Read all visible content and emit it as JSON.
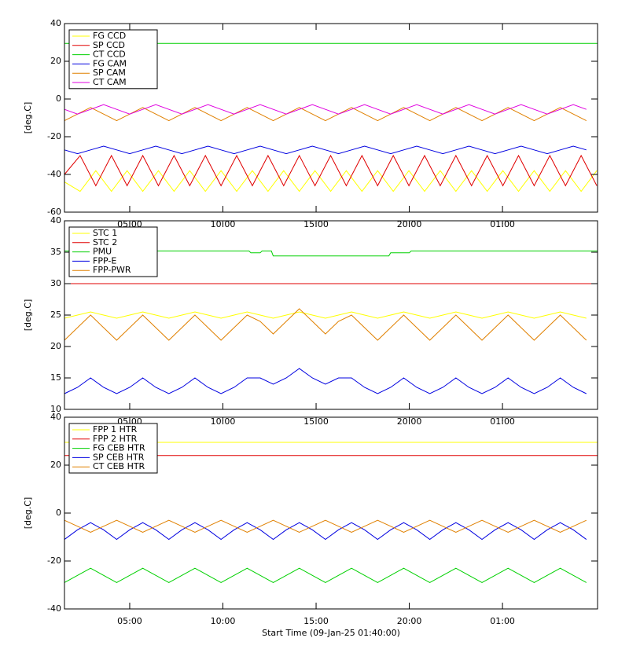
{
  "chart_data": [
    {
      "type": "line",
      "ylabel": "[deg.C]",
      "xlim": [
        1.5,
        30.1
      ],
      "xticks": [
        {
          "value": 5,
          "label": "05:00"
        },
        {
          "value": 10,
          "label": "10:00"
        },
        {
          "value": 15,
          "label": "15:00"
        },
        {
          "value": 20,
          "label": "20:00"
        },
        {
          "value": 25,
          "label": "01:00"
        }
      ],
      "ylim": [
        -60,
        40
      ],
      "yticks": [
        -60,
        -40,
        -20,
        0,
        20,
        40
      ],
      "x": [
        1.5,
        2.2,
        2.9,
        3.6,
        4.3,
        5,
        5.7,
        6.4,
        7.1,
        7.8,
        8.5,
        9.2,
        9.9,
        10.6,
        11.3,
        12,
        12.7,
        13.4,
        14.1,
        14.8,
        15.5,
        16.2,
        16.9,
        17.6,
        18.3,
        19,
        19.7,
        20.4,
        21.1,
        21.8,
        22.5,
        23.2,
        23.9,
        24.6,
        25.3,
        26,
        26.7,
        27.4,
        28.1,
        28.8,
        29.5
      ],
      "series": [
        {
          "name": "FG CCD",
          "color": "#ffff00",
          "x": [
            1.5,
            2.34,
            3.18,
            4.02,
            4.86,
            5.7,
            6.54,
            7.38,
            8.22,
            9.06,
            9.9,
            10.74,
            11.58,
            12.42,
            13.26,
            14.1,
            14.94,
            15.78,
            16.62,
            17.46,
            18.3,
            19.14,
            19.98,
            20.82,
            21.66,
            22.5,
            23.34,
            24.18,
            25.02,
            25.86,
            26.7,
            27.54,
            28.38,
            29.22,
            30.06
          ],
          "values": [
            -44,
            -49,
            -38,
            -49,
            -38,
            -49,
            -38,
            -49,
            -38,
            -49,
            -38,
            -49,
            -38,
            -49,
            -38,
            -49,
            -38,
            -49,
            -38,
            -49,
            -38,
            -49,
            -38,
            -49,
            -38,
            -49,
            -38,
            -49,
            -38,
            -49,
            -38,
            -49,
            -38,
            -49,
            -38
          ]
        },
        {
          "name": "SP CCD",
          "color": "#e00000",
          "x": [
            1.5,
            2.34,
            3.18,
            4.02,
            4.86,
            5.7,
            6.54,
            7.38,
            8.22,
            9.06,
            9.9,
            10.74,
            11.58,
            12.42,
            13.26,
            14.1,
            14.94,
            15.78,
            16.62,
            17.46,
            18.3,
            19.14,
            19.98,
            20.82,
            21.66,
            22.5,
            23.34,
            24.18,
            25.02,
            25.86,
            26.7,
            27.54,
            28.38,
            29.22,
            30.06
          ],
          "values": [
            -40,
            -30,
            -46,
            -30,
            -46,
            -30,
            -46,
            -30,
            -46,
            -30,
            -46,
            -30,
            -46,
            -30,
            -46,
            -30,
            -46,
            -30,
            -46,
            -30,
            -46,
            -30,
            -46,
            -30,
            -46,
            -30,
            -46,
            -30,
            -46,
            -30,
            -46,
            -30,
            -46,
            -30,
            -46
          ]
        },
        {
          "name": "CT CCD",
          "color": "#00d000",
          "x": [
            1.5,
            30.1
          ],
          "values": [
            29.5,
            29.5
          ]
        },
        {
          "name": "FG CAM",
          "color": "#0000e0",
          "values": [
            -27,
            -29,
            -27,
            -25,
            -27,
            -29,
            -27,
            -25,
            -27,
            -29,
            -27,
            -25,
            -27,
            -29,
            -27,
            -25,
            -27,
            -29,
            -27,
            -25,
            -27,
            -29,
            -27,
            -25,
            -27,
            -29,
            -27,
            -25,
            -27,
            -29,
            -27,
            -25,
            -27,
            -29,
            -27,
            -25,
            -27,
            -29,
            -27,
            -25,
            -27
          ]
        },
        {
          "name": "SP CAM",
          "color": "#e08000",
          "values": [
            -11.5,
            -8,
            -4.5,
            -8,
            -11.5,
            -8,
            -4.5,
            -8,
            -11.5,
            -8,
            -4.5,
            -8,
            -11.5,
            -8,
            -4.5,
            -8,
            -11.5,
            -8,
            -4.5,
            -8,
            -11.5,
            -8,
            -4.5,
            -8,
            -11.5,
            -8,
            -4.5,
            -8,
            -11.5,
            -8,
            -4.5,
            -8,
            -11.5,
            -8,
            -4.5,
            -8,
            -11.5,
            -8,
            -4.5,
            -8,
            -11.5
          ]
        },
        {
          "name": "CT CAM",
          "color": "#e000e0",
          "values": [
            -5.5,
            -8,
            -5.5,
            -3,
            -5.5,
            -8,
            -5.5,
            -3,
            -5.5,
            -8,
            -5.5,
            -3,
            -5.5,
            -8,
            -5.5,
            -3,
            -5.5,
            -8,
            -5.5,
            -3,
            -5.5,
            -8,
            -5.5,
            -3,
            -5.5,
            -8,
            -5.5,
            -3,
            -5.5,
            -8,
            -5.5,
            -3,
            -5.5,
            -8,
            -5.5,
            -3,
            -5.5,
            -8,
            -5.5,
            -3,
            -5.5
          ]
        }
      ]
    },
    {
      "type": "line",
      "ylabel": "[deg.C]",
      "xlim": [
        1.5,
        30.1
      ],
      "xticks": [
        {
          "value": 5,
          "label": "05:00"
        },
        {
          "value": 10,
          "label": "10:00"
        },
        {
          "value": 15,
          "label": "15:00"
        },
        {
          "value": 20,
          "label": "20:00"
        },
        {
          "value": 25,
          "label": "01:00"
        }
      ],
      "ylim": [
        10,
        40
      ],
      "yticks": [
        10,
        15,
        20,
        25,
        30,
        35,
        40
      ],
      "x": [
        1.5,
        2.2,
        2.9,
        3.6,
        4.3,
        5,
        5.7,
        6.4,
        7.1,
        7.8,
        8.5,
        9.2,
        9.9,
        10.6,
        11.3,
        12,
        12.7,
        13.4,
        14.1,
        14.8,
        15.5,
        16.2,
        16.9,
        17.6,
        18.3,
        19,
        19.7,
        20.4,
        21.1,
        21.8,
        22.5,
        23.2,
        23.9,
        24.6,
        25.3,
        26,
        26.7,
        27.4,
        28.1,
        28.8,
        29.5
      ],
      "series": [
        {
          "name": "STC 1",
          "color": "#ffff00",
          "values": [
            24.5,
            25,
            25.5,
            25,
            24.5,
            25,
            25.5,
            25,
            24.5,
            25,
            25.5,
            25,
            24.5,
            25,
            25.5,
            25,
            24.5,
            25,
            25.5,
            25,
            24.5,
            25,
            25.5,
            25,
            24.5,
            25,
            25.5,
            25,
            24.5,
            25,
            25.5,
            25,
            24.5,
            25,
            25.5,
            25,
            24.5,
            25,
            25.5,
            25,
            24.5
          ]
        },
        {
          "name": "STC 2",
          "color": "#e00000",
          "x": [
            1.5,
            30.1
          ],
          "values": [
            30,
            30
          ]
        },
        {
          "name": "PMU",
          "color": "#00d000",
          "x": [
            1.5,
            11.4,
            11.5,
            12.0,
            12.1,
            12.6,
            12.7,
            18.9,
            19.0,
            20.0,
            20.1,
            30.1
          ],
          "values": [
            35.2,
            35.2,
            34.9,
            34.9,
            35.2,
            35.2,
            34.4,
            34.4,
            34.9,
            34.9,
            35.2,
            35.2
          ]
        },
        {
          "name": "FPP-E",
          "color": "#0000e0",
          "values": [
            12.5,
            13.5,
            15,
            13.5,
            12.5,
            13.5,
            15,
            13.5,
            12.5,
            13.5,
            15,
            13.5,
            12.5,
            13.5,
            15,
            15,
            14,
            15,
            16.5,
            15,
            14,
            15,
            15,
            13.5,
            12.5,
            13.5,
            15,
            13.5,
            12.5,
            13.5,
            15,
            13.5,
            12.5,
            13.5,
            15,
            13.5,
            12.5,
            13.5,
            15,
            13.5,
            12.5
          ]
        },
        {
          "name": "FPP-PWR",
          "color": "#e08000",
          "values": [
            21,
            23,
            25,
            23,
            21,
            23,
            25,
            23,
            21,
            23,
            25,
            23,
            21,
            23,
            25,
            24,
            22,
            24,
            26,
            24,
            22,
            24,
            25,
            23,
            21,
            23,
            25,
            23,
            21,
            23,
            25,
            23,
            21,
            23,
            25,
            23,
            21,
            23,
            25,
            23,
            21
          ]
        }
      ]
    },
    {
      "type": "line",
      "ylabel": "[deg.C]",
      "xlabel": "Start Time (09-Jan-25 01:40:00)",
      "xlim": [
        1.5,
        30.1
      ],
      "xticks": [
        {
          "value": 5,
          "label": "05:00"
        },
        {
          "value": 10,
          "label": "10:00"
        },
        {
          "value": 15,
          "label": "15:00"
        },
        {
          "value": 20,
          "label": "20:00"
        },
        {
          "value": 25,
          "label": "01:00"
        }
      ],
      "ylim": [
        -40,
        40
      ],
      "yticks": [
        -40,
        -20,
        0,
        20,
        40
      ],
      "x": [
        1.5,
        2.2,
        2.9,
        3.6,
        4.3,
        5,
        5.7,
        6.4,
        7.1,
        7.8,
        8.5,
        9.2,
        9.9,
        10.6,
        11.3,
        12,
        12.7,
        13.4,
        14.1,
        14.8,
        15.5,
        16.2,
        16.9,
        17.6,
        18.3,
        19,
        19.7,
        20.4,
        21.1,
        21.8,
        22.5,
        23.2,
        23.9,
        24.6,
        25.3,
        26,
        26.7,
        27.4,
        28.1,
        28.8,
        29.5
      ],
      "series": [
        {
          "name": "FPP 1 HTR",
          "color": "#ffff00",
          "x": [
            1.5,
            30.1
          ],
          "values": [
            29.5,
            29.5
          ]
        },
        {
          "name": "FPP 2 HTR",
          "color": "#e00000",
          "x": [
            1.5,
            30.1
          ],
          "values": [
            24,
            24
          ]
        },
        {
          "name": "FG CEB HTR",
          "color": "#00d000",
          "values": [
            -29,
            -26,
            -23,
            -26,
            -29,
            -26,
            -23,
            -26,
            -29,
            -26,
            -23,
            -26,
            -29,
            -26,
            -23,
            -26,
            -29,
            -26,
            -23,
            -26,
            -29,
            -26,
            -23,
            -26,
            -29,
            -26,
            -23,
            -26,
            -29,
            -26,
            -23,
            -26,
            -29,
            -26,
            -23,
            -26,
            -29,
            -26,
            -23,
            -26,
            -29
          ]
        },
        {
          "name": "SP CEB HTR",
          "color": "#0000e0",
          "values": [
            -11,
            -7,
            -4,
            -7,
            -11,
            -7,
            -4,
            -7,
            -11,
            -7,
            -4,
            -7,
            -11,
            -7,
            -4,
            -7,
            -11,
            -7,
            -4,
            -7,
            -11,
            -7,
            -4,
            -7,
            -11,
            -7,
            -4,
            -7,
            -11,
            -7,
            -4,
            -7,
            -11,
            -7,
            -4,
            -7,
            -11,
            -7,
            -4,
            -7,
            -11
          ]
        },
        {
          "name": "CT CEB HTR",
          "color": "#e08000",
          "values": [
            -3,
            -5.5,
            -8,
            -5.5,
            -3,
            -5.5,
            -8,
            -5.5,
            -3,
            -5.5,
            -8,
            -5.5,
            -3,
            -5.5,
            -8,
            -5.5,
            -3,
            -5.5,
            -8,
            -5.5,
            -3,
            -5.5,
            -8,
            -5.5,
            -3,
            -5.5,
            -8,
            -5.5,
            -3,
            -5.5,
            -8,
            -5.5,
            -3,
            -5.5,
            -8,
            -5.5,
            -3,
            -5.5,
            -8,
            -5.5,
            -3
          ]
        }
      ]
    }
  ]
}
